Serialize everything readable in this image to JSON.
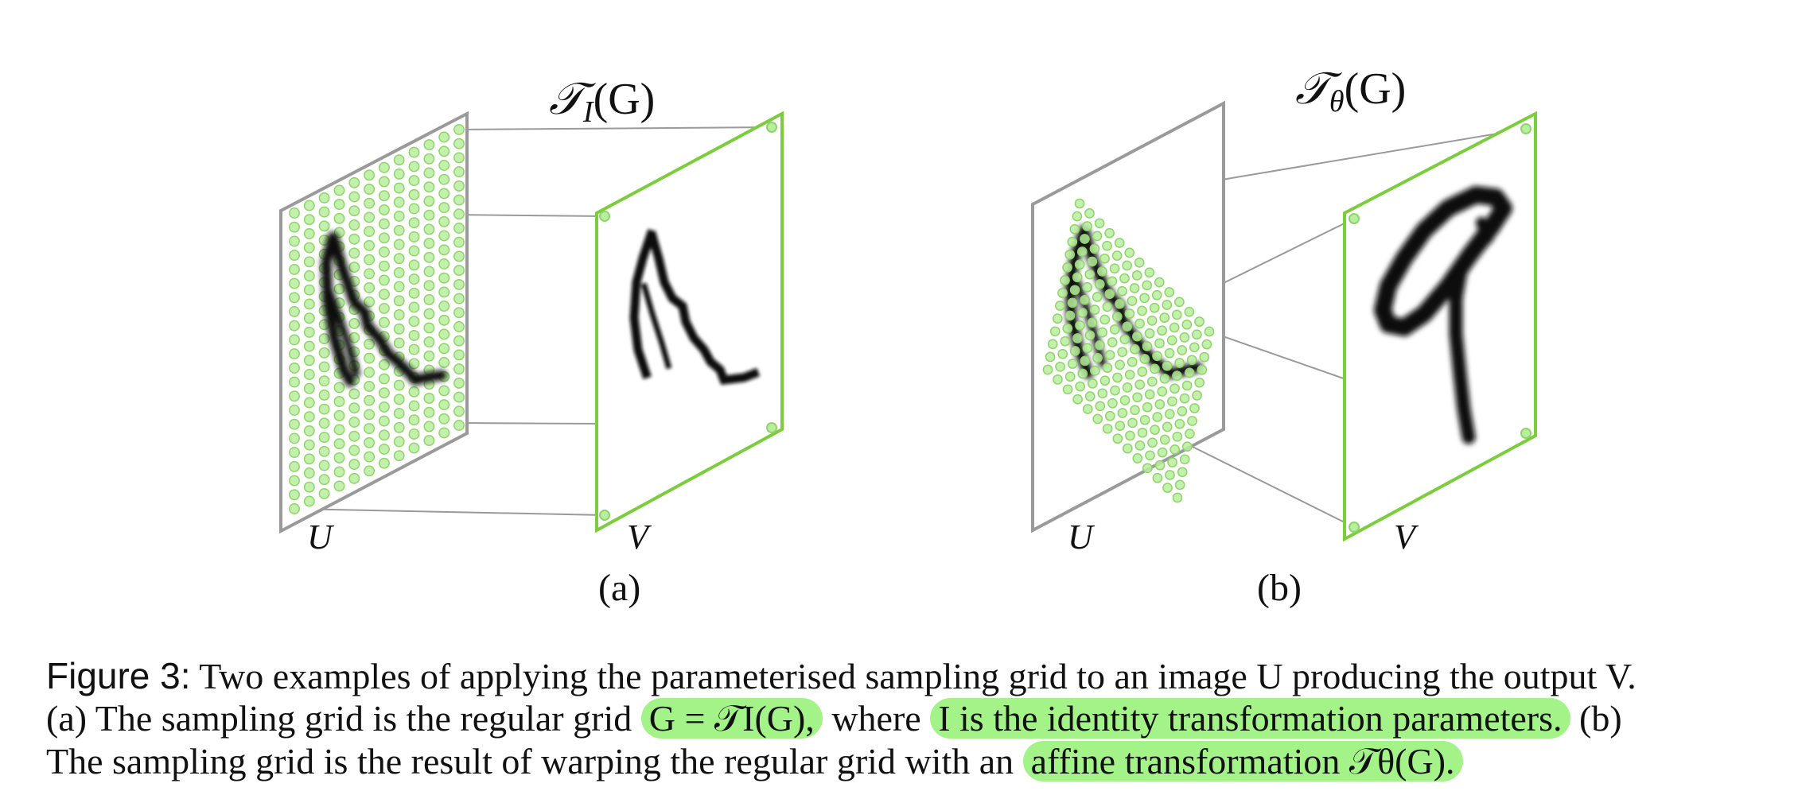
{
  "panels": [
    {
      "id": "a",
      "transform_label": "𝒯I(G)",
      "transform_symbol": "𝒯",
      "transform_sub": "I",
      "transform_arg": "(G)",
      "input_label": "U",
      "output_label": "V",
      "caption_tag": "(a)"
    },
    {
      "id": "b",
      "transform_label": "𝒯θ(G)",
      "transform_symbol": "𝒯",
      "transform_sub": "θ",
      "transform_arg": "(G)",
      "input_label": "U",
      "output_label": "V",
      "caption_tag": "(b)"
    }
  ],
  "colors": {
    "grid_point": "#9be07e",
    "output_frame": "#7ccd3c",
    "input_frame": "#9a9a9a",
    "highlight": "#a4f389"
  },
  "caption": {
    "lead": "Figure 3:",
    "line1": " Two examples of applying the parameterised sampling grid to an image U producing the output V.",
    "line2_a": "(a) The sampling grid is the regular grid ",
    "line2_hl1": "G = 𝒯I(G),",
    "line2_b": " where ",
    "line2_hl2": "I is the identity transformation parameters.",
    "line2_c": " (b)",
    "line3_a": "The sampling grid is the result of warping the regular grid with an ",
    "line3_hl": "affine transformation 𝒯θ(G)."
  }
}
